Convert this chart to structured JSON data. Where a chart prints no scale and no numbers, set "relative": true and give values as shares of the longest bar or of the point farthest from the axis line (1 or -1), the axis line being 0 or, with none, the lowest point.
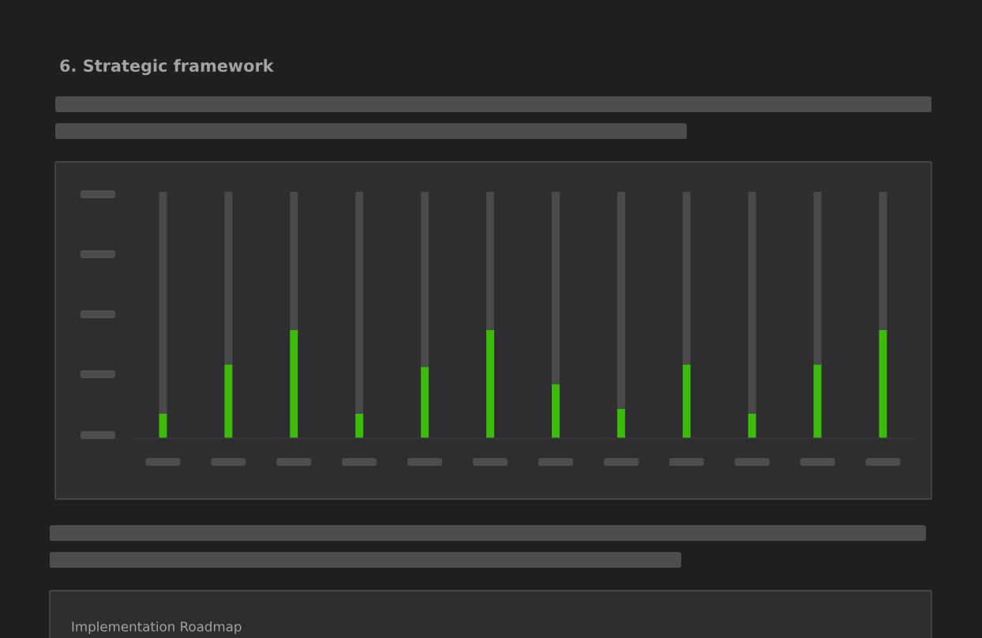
{
  "chart_data": {
    "type": "bar",
    "title": "6. Strategic framework",
    "relative": true,
    "stacked": true,
    "categories": [
      null,
      null,
      null,
      null,
      null,
      null,
      null,
      null,
      null,
      null,
      null,
      null
    ],
    "series": [
      {
        "color": "#3dbb0a",
        "values": [
          0.1,
          0.3,
          0.44,
          0.1,
          0.29,
          0.44,
          0.22,
          0.12,
          0.3,
          0.1,
          0.3,
          0.44
        ]
      },
      {
        "color": "#4a4a4c",
        "values": [
          0.9,
          0.7,
          0.56,
          0.9,
          0.71,
          0.56,
          0.78,
          0.88,
          0.7,
          0.9,
          0.7,
          0.56
        ]
      }
    ],
    "annotations": [
      "Implementation Roadmap"
    ]
  }
}
